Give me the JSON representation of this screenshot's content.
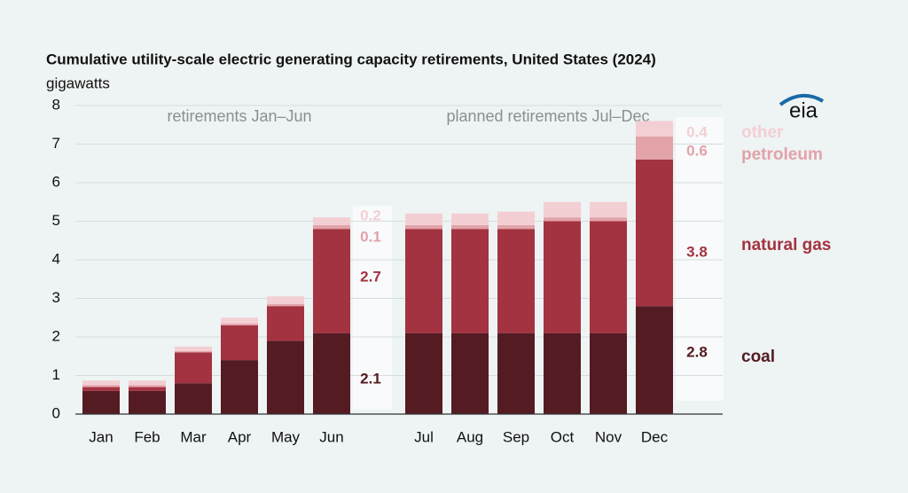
{
  "chart_data": {
    "type": "bar",
    "stacked": true,
    "title": "Cumulative utility-scale electric generating capacity retirements, United States (2024)",
    "subtitle": "gigawatts",
    "annotations": [
      "retirements Jan–Jun",
      "planned retirements Jul–Dec"
    ],
    "logo": "eia",
    "categories": [
      "Jan",
      "Feb",
      "Mar",
      "Apr",
      "May",
      "Jun",
      "Jul",
      "Aug",
      "Sep",
      "Oct",
      "Nov",
      "Dec"
    ],
    "series": [
      {
        "name": "coal",
        "color": "#541b22",
        "values": [
          0.6,
          0.6,
          0.8,
          1.4,
          1.9,
          2.1,
          2.1,
          2.1,
          2.1,
          2.1,
          2.1,
          2.8
        ]
      },
      {
        "name": "natural gas",
        "color": "#a33340",
        "values": [
          0.1,
          0.1,
          0.8,
          0.9,
          0.9,
          2.7,
          2.7,
          2.7,
          2.7,
          2.9,
          2.9,
          3.8
        ]
      },
      {
        "name": "petroleum",
        "color": "#e2a3a9",
        "values": [
          0.05,
          0.05,
          0.03,
          0.05,
          0.05,
          0.1,
          0.1,
          0.1,
          0.1,
          0.1,
          0.1,
          0.6
        ]
      },
      {
        "name": "other",
        "color": "#f3cfd3",
        "values": [
          0.12,
          0.12,
          0.12,
          0.15,
          0.2,
          0.2,
          0.3,
          0.3,
          0.35,
          0.4,
          0.4,
          0.4
        ]
      }
    ],
    "ylim": [
      0,
      8
    ],
    "yticks": [
      0,
      1,
      2,
      3,
      4,
      5,
      6,
      7,
      8
    ],
    "grid": true
  }
}
